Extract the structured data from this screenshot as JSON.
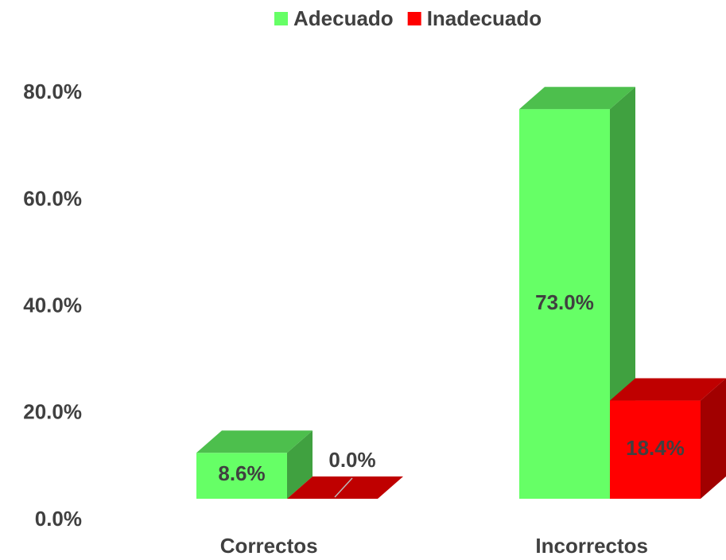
{
  "chart_data": {
    "type": "bar3d",
    "categories": [
      "Correctos",
      "Incorrectos"
    ],
    "series": [
      {
        "name": "Adecuado",
        "color": "#66ff66",
        "values": [
          8.6,
          73.0
        ],
        "value_labels": [
          "8.6%",
          "73.0%"
        ]
      },
      {
        "name": "Inadecuado",
        "color": "#ff0000",
        "values": [
          0.0,
          18.4
        ],
        "value_labels": [
          "0.0%",
          "18.4%"
        ]
      }
    ],
    "ylim": [
      0,
      80
    ],
    "yticks": [
      {
        "value": 0,
        "label": "0.0%"
      },
      {
        "value": 20,
        "label": "20.0%"
      },
      {
        "value": 40,
        "label": "40.0%"
      },
      {
        "value": 60,
        "label": "60.0%"
      },
      {
        "value": 80,
        "label": "80.0%"
      }
    ],
    "legend": "top",
    "grid": false
  }
}
